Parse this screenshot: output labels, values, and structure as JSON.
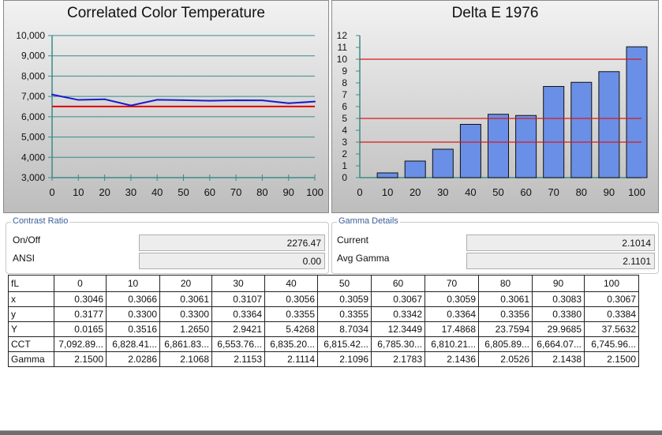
{
  "panels": {
    "cct_title": "Correlated Color Temperature",
    "delta_title": "Delta E 1976"
  },
  "chart_data": [
    {
      "type": "line",
      "title": "Correlated Color Temperature",
      "x": [
        0,
        10,
        20,
        30,
        40,
        50,
        60,
        70,
        80,
        90,
        100
      ],
      "xlim": [
        0,
        100
      ],
      "ylim": [
        3000,
        10000
      ],
      "x_ticks": [
        "0",
        "10",
        "20",
        "30",
        "40",
        "50",
        "60",
        "70",
        "80",
        "90",
        "100"
      ],
      "y_ticks": [
        "3,000",
        "4,000",
        "5,000",
        "6,000",
        "7,000",
        "8,000",
        "9,000",
        "10,000"
      ],
      "grid": true,
      "colors": {
        "measured": "#1a1acc",
        "reference": "#e00000",
        "grid": "#3a8a8a"
      },
      "series": [
        {
          "values": [
            7092.89,
            6828.41,
            6861.83,
            6553.76,
            6835.2,
            6815.42,
            6785.3,
            6810.21,
            6805.89,
            6664.07,
            6745.96
          ]
        },
        {
          "values": [
            6504,
            6504,
            6504,
            6504,
            6504,
            6504,
            6504,
            6504,
            6504,
            6504,
            6504
          ]
        }
      ]
    },
    {
      "type": "bar",
      "title": "Delta E 1976",
      "categories": [
        "0",
        "10",
        "20",
        "30",
        "40",
        "50",
        "60",
        "70",
        "80",
        "90",
        "100"
      ],
      "values": [
        0.0,
        0.4,
        1.4,
        2.4,
        4.5,
        5.35,
        5.25,
        7.7,
        8.05,
        8.95,
        11.05
      ],
      "ylim": [
        0,
        12
      ],
      "y_ticks": [
        "0",
        "1",
        "2",
        "3",
        "4",
        "5",
        "6",
        "7",
        "8",
        "9",
        "10",
        "11",
        "12"
      ],
      "reference_lines": [
        3,
        5,
        10
      ],
      "colors": {
        "bar": "#6a8fe6",
        "bar_border": "#101010",
        "reference": "#d61a1a"
      }
    }
  ],
  "contrast": {
    "title": "Contrast Ratio",
    "onoff_label": "On/Off",
    "onoff_value": "2276.47",
    "ansi_label": "ANSI",
    "ansi_value": "0.00"
  },
  "gamma": {
    "title": "Gamma Details",
    "current_label": "Current",
    "current_value": "2.1014",
    "avg_label": "Avg Gamma",
    "avg_value": "2.1101"
  },
  "table": {
    "header": {
      "label": "fL",
      "cols": [
        "0",
        "10",
        "20",
        "30",
        "40",
        "50",
        "60",
        "70",
        "80",
        "90",
        "100"
      ]
    },
    "rows": [
      {
        "label": "x",
        "values": [
          "0.3046",
          "0.3066",
          "0.3061",
          "0.3107",
          "0.3056",
          "0.3059",
          "0.3067",
          "0.3059",
          "0.3061",
          "0.3083",
          "0.3067"
        ]
      },
      {
        "label": "y",
        "values": [
          "0.3177",
          "0.3300",
          "0.3300",
          "0.3364",
          "0.3355",
          "0.3355",
          "0.3342",
          "0.3364",
          "0.3356",
          "0.3380",
          "0.3384"
        ]
      },
      {
        "label": "Y",
        "values": [
          "0.0165",
          "0.3516",
          "1.2650",
          "2.9421",
          "5.4268",
          "8.7034",
          "12.3449",
          "17.4868",
          "23.7594",
          "29.9685",
          "37.5632"
        ]
      },
      {
        "label": "CCT",
        "values": [
          "7,092.89...",
          "6,828.41...",
          "6,861.83...",
          "6,553.76...",
          "6,835.20...",
          "6,815.42...",
          "6,785.30...",
          "6,810.21...",
          "6,805.89...",
          "6,664.07...",
          "6,745.96..."
        ]
      },
      {
        "label": "Gamma",
        "values": [
          "2.1500",
          "2.0286",
          "2.1068",
          "2.1153",
          "2.1114",
          "2.1096",
          "2.1783",
          "2.1436",
          "2.0526",
          "2.1438",
          "2.1500"
        ]
      }
    ]
  }
}
